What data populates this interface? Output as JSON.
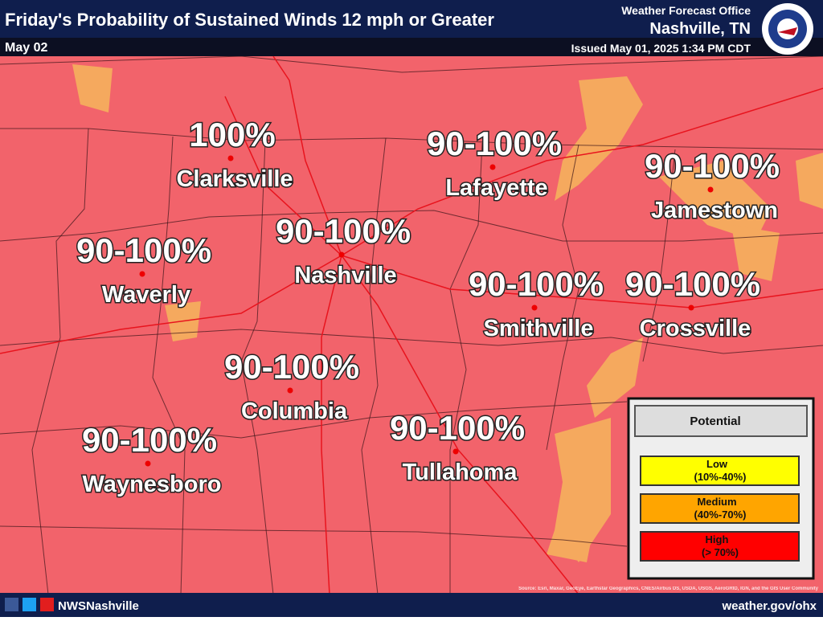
{
  "header": {
    "title": "Friday's Probability of Sustained Winds 12 mph or Greater",
    "date": "May 02",
    "office": "Weather Forecast Office",
    "location": "Nashville, TN",
    "issued": "Issued May 01, 2025 1:34 PM CDT"
  },
  "cities": [
    {
      "value": "100%",
      "name": "Clarksville"
    },
    {
      "value": "90-100%",
      "name": "Lafayette"
    },
    {
      "value": "90-100%",
      "name": "Jamestown"
    },
    {
      "value": "90-100%",
      "name": "Nashville"
    },
    {
      "value": "90-100%",
      "name": "Waverly"
    },
    {
      "value": "90-100%",
      "name": "Smithville"
    },
    {
      "value": "90-100%",
      "name": "Crossville"
    },
    {
      "value": "90-100%",
      "name": "Columbia"
    },
    {
      "value": "90-100%",
      "name": "Tullahoma"
    },
    {
      "value": "90-100%",
      "name": "Waynesboro"
    }
  ],
  "legend": {
    "title": "Potential",
    "items": [
      {
        "label": "Low",
        "range": "(10%-40%)",
        "color": "#ffff00"
      },
      {
        "label": "Medium",
        "range": "(40%-70%)",
        "color": "#ffa500"
      },
      {
        "label": "High",
        "range": "(> 70%)",
        "color": "#ff0000"
      }
    ]
  },
  "attribution": "Source: Esri, Maxar, GeoEye, Earthstar Geographics, CNES/Airbus DS, USDA, USGS, AeroGRID, IGN, and the GIS User Community",
  "footer": {
    "social": "NWSNashville",
    "website": "weather.gov/ohx"
  }
}
